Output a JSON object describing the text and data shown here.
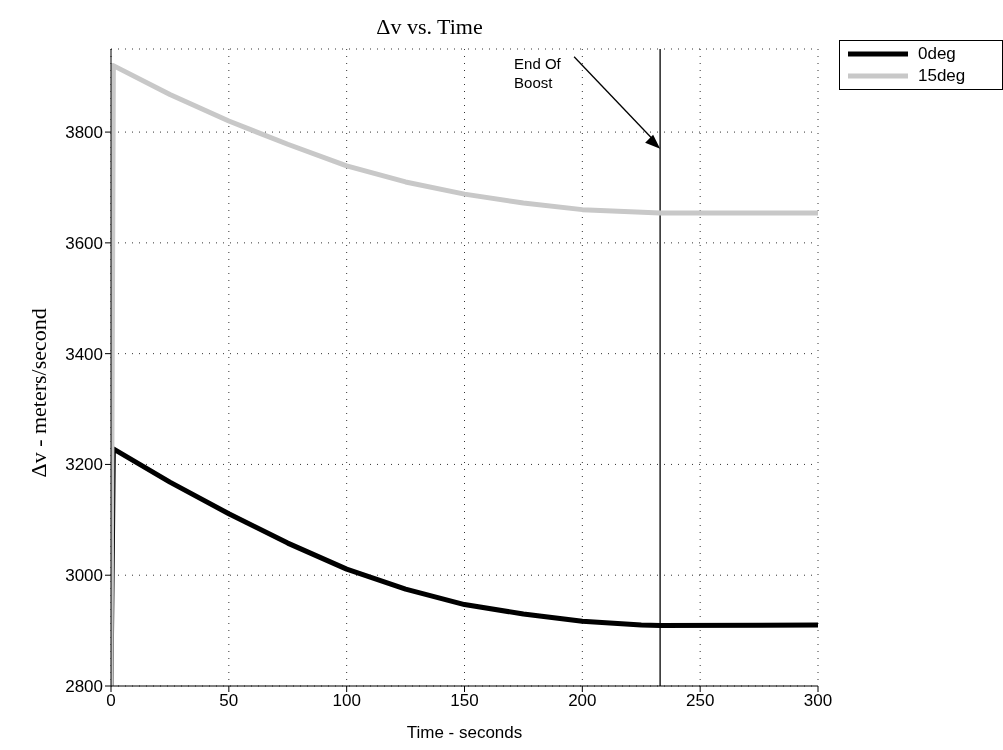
{
  "chart_data": {
    "type": "line",
    "title": "Δv vs. Time",
    "xlabel": "Time - seconds",
    "ylabel": "Δv - meters/second",
    "xlim": [
      0,
      300
    ],
    "xticks": [
      0,
      50,
      100,
      150,
      200,
      250,
      300
    ],
    "ylim": [
      2800,
      3950
    ],
    "yticks": [
      2800,
      3000,
      3200,
      3400,
      3600,
      3800
    ],
    "grid": true,
    "legend": "top right",
    "line_style": "solid",
    "series": [
      {
        "name": "0deg",
        "color": "#000000",
        "x": [
          0,
          1,
          25,
          50,
          75,
          100,
          125,
          150,
          175,
          200,
          225,
          233,
          300
        ],
        "values": [
          2800,
          3228,
          3168,
          3111,
          3058,
          3011,
          2975,
          2947,
          2930,
          2917,
          2910,
          2909,
          2910
        ]
      },
      {
        "name": "15deg",
        "color": "#c8c8c8",
        "x": [
          0,
          1,
          25,
          50,
          75,
          100,
          125,
          150,
          175,
          200,
          233,
          300
        ],
        "values": [
          2800,
          3920,
          3868,
          3820,
          3778,
          3739,
          3710,
          3688,
          3672,
          3660,
          3654,
          3654
        ]
      }
    ],
    "ref_lines": [
      {
        "axis": "x",
        "value": 233,
        "color": "#000000"
      }
    ],
    "annotations": [
      {
        "text": "End Of Boost",
        "x": 233,
        "y": 3770
      }
    ]
  }
}
